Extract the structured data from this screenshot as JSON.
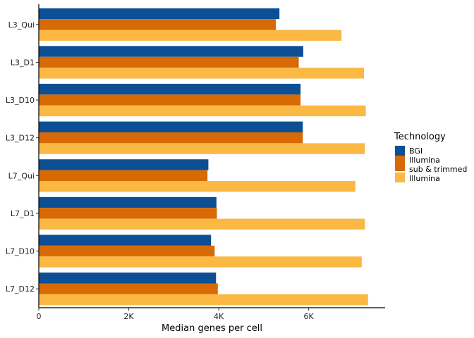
{
  "chart_data": {
    "type": "bar",
    "orientation": "horizontal",
    "categories": [
      "L3_Qui",
      "L3_D1",
      "L3_D10",
      "L3_D12",
      "L7_Qui",
      "L7_D1",
      "L7_D10",
      "L7_D12"
    ],
    "series": [
      {
        "name": "BGI",
        "color": "#0d4f94",
        "values": [
          5350,
          5880,
          5820,
          5870,
          3770,
          3950,
          3830,
          3940
        ]
      },
      {
        "name": [
          "Illumina",
          "sub & trimmed"
        ],
        "color": "#d86a06",
        "values": [
          5270,
          5780,
          5820,
          5870,
          3750,
          3960,
          3910,
          3980
        ]
      },
      {
        "name": "Illumina",
        "color": "#fbb843",
        "values": [
          6730,
          7230,
          7270,
          7250,
          7040,
          7250,
          7180,
          7320
        ]
      }
    ],
    "xlabel": "Median genes per cell",
    "ylabel": "",
    "xlim": [
      0,
      7700
    ],
    "xticks": [
      0,
      2000,
      4000,
      6000
    ],
    "xtick_labels": [
      "0",
      "2K",
      "4K",
      "6K"
    ],
    "legend_title": "Technology",
    "legend_position": "right",
    "grid": false
  }
}
